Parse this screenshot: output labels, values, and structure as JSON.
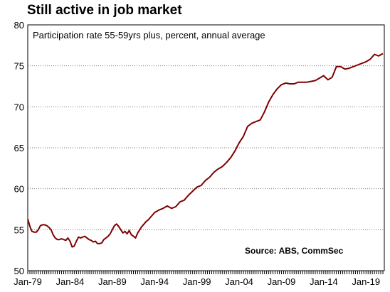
{
  "chart_data": {
    "type": "line",
    "title": "Still active in job market",
    "subtitle": "Participation rate 55-59yrs plus, percent, annual average",
    "source": "Source: ABS, CommSec",
    "xlabel": "",
    "ylabel": "",
    "ylim": [
      50,
      80
    ],
    "yticks": [
      50,
      55,
      60,
      65,
      70,
      75,
      80
    ],
    "xlim": [
      "1979-01",
      "2021-03"
    ],
    "xticks": [
      "1979-01",
      "1984-01",
      "1989-01",
      "1994-01",
      "1999-01",
      "2004-01",
      "2009-01",
      "2014-01",
      "2019-01"
    ],
    "xtick_labels": [
      "Jan-79",
      "Jan-84",
      "Jan-89",
      "Jan-94",
      "Jan-99",
      "Jan-04",
      "Jan-09",
      "Jan-14",
      "Jan-19"
    ],
    "grid": {
      "y": true,
      "x": false,
      "style": "dotted"
    },
    "line_color": "#7f0000",
    "series": [
      {
        "x": [
          "1979-01",
          "1979-04",
          "1979-07",
          "1979-10",
          "1980-01",
          "1980-04",
          "1980-07",
          "1980-10",
          "1981-01",
          "1981-04",
          "1981-07",
          "1981-10",
          "1982-01",
          "1982-04",
          "1982-07",
          "1982-10",
          "1983-01",
          "1983-04",
          "1983-07",
          "1983-10",
          "1984-01",
          "1984-04",
          "1984-07",
          "1984-10",
          "1985-01",
          "1985-04",
          "1985-07",
          "1985-10",
          "1986-01",
          "1986-04",
          "1986-07",
          "1986-10",
          "1987-01",
          "1987-04",
          "1987-07",
          "1987-10",
          "1988-01",
          "1988-04",
          "1988-07",
          "1988-10",
          "1989-01",
          "1989-04",
          "1989-07",
          "1989-10",
          "1990-01",
          "1990-04",
          "1990-07",
          "1990-10",
          "1991-01",
          "1991-04",
          "1991-07",
          "1991-10",
          "1992-01",
          "1992-04",
          "1992-07",
          "1992-10",
          "1993-01",
          "1993-04",
          "1993-07",
          "1993-10",
          "1994-01",
          "1994-07",
          "1995-01",
          "1995-07",
          "1996-01",
          "1996-07",
          "1997-01",
          "1997-07",
          "1998-01",
          "1998-07",
          "1999-01",
          "1999-07",
          "2000-01",
          "2000-07",
          "2001-01",
          "2001-07",
          "2002-01",
          "2002-07",
          "2003-01",
          "2003-07",
          "2004-01",
          "2004-07",
          "2005-01",
          "2005-07",
          "2006-01",
          "2006-07",
          "2007-01",
          "2007-07",
          "2008-01",
          "2008-07",
          "2009-01",
          "2009-07",
          "2010-01",
          "2010-07",
          "2011-01",
          "2011-07",
          "2012-01",
          "2012-07",
          "2013-01",
          "2013-07",
          "2014-01",
          "2014-07",
          "2015-01",
          "2015-07",
          "2016-01",
          "2016-07",
          "2017-01",
          "2017-07",
          "2018-01",
          "2018-07",
          "2019-01",
          "2019-07",
          "2020-01",
          "2020-07",
          "2021-01"
        ],
        "values": [
          56.3,
          55.4,
          54.8,
          54.7,
          54.7,
          55.0,
          55.5,
          55.6,
          55.6,
          55.5,
          55.3,
          55.0,
          54.4,
          54.0,
          53.8,
          53.8,
          53.9,
          53.8,
          53.7,
          54.0,
          53.6,
          52.9,
          53.0,
          53.6,
          54.1,
          54.0,
          54.1,
          54.2,
          54.0,
          53.8,
          53.7,
          53.5,
          53.6,
          53.3,
          53.3,
          53.4,
          53.8,
          54.0,
          54.2,
          54.5,
          55.0,
          55.5,
          55.7,
          55.4,
          55.0,
          54.6,
          54.8,
          54.5,
          54.9,
          54.4,
          54.2,
          54.0,
          54.6,
          55.0,
          55.4,
          55.7,
          56.0,
          56.2,
          56.5,
          56.8,
          57.1,
          57.4,
          57.6,
          57.9,
          57.6,
          57.8,
          58.4,
          58.6,
          59.2,
          59.7,
          60.2,
          60.4,
          61.0,
          61.4,
          62.0,
          62.4,
          62.7,
          63.2,
          63.8,
          64.6,
          65.6,
          66.4,
          67.6,
          68.0,
          68.2,
          68.4,
          69.4,
          70.6,
          71.5,
          72.2,
          72.7,
          72.9,
          72.8,
          72.8,
          73.0,
          73.0,
          73.0,
          73.1,
          73.2,
          73.5,
          73.8,
          73.3,
          73.6,
          74.9,
          74.9,
          74.6,
          74.7,
          74.9,
          75.1,
          75.3,
          75.5,
          75.8,
          76.4,
          76.2,
          76.5
        ]
      }
    ]
  }
}
